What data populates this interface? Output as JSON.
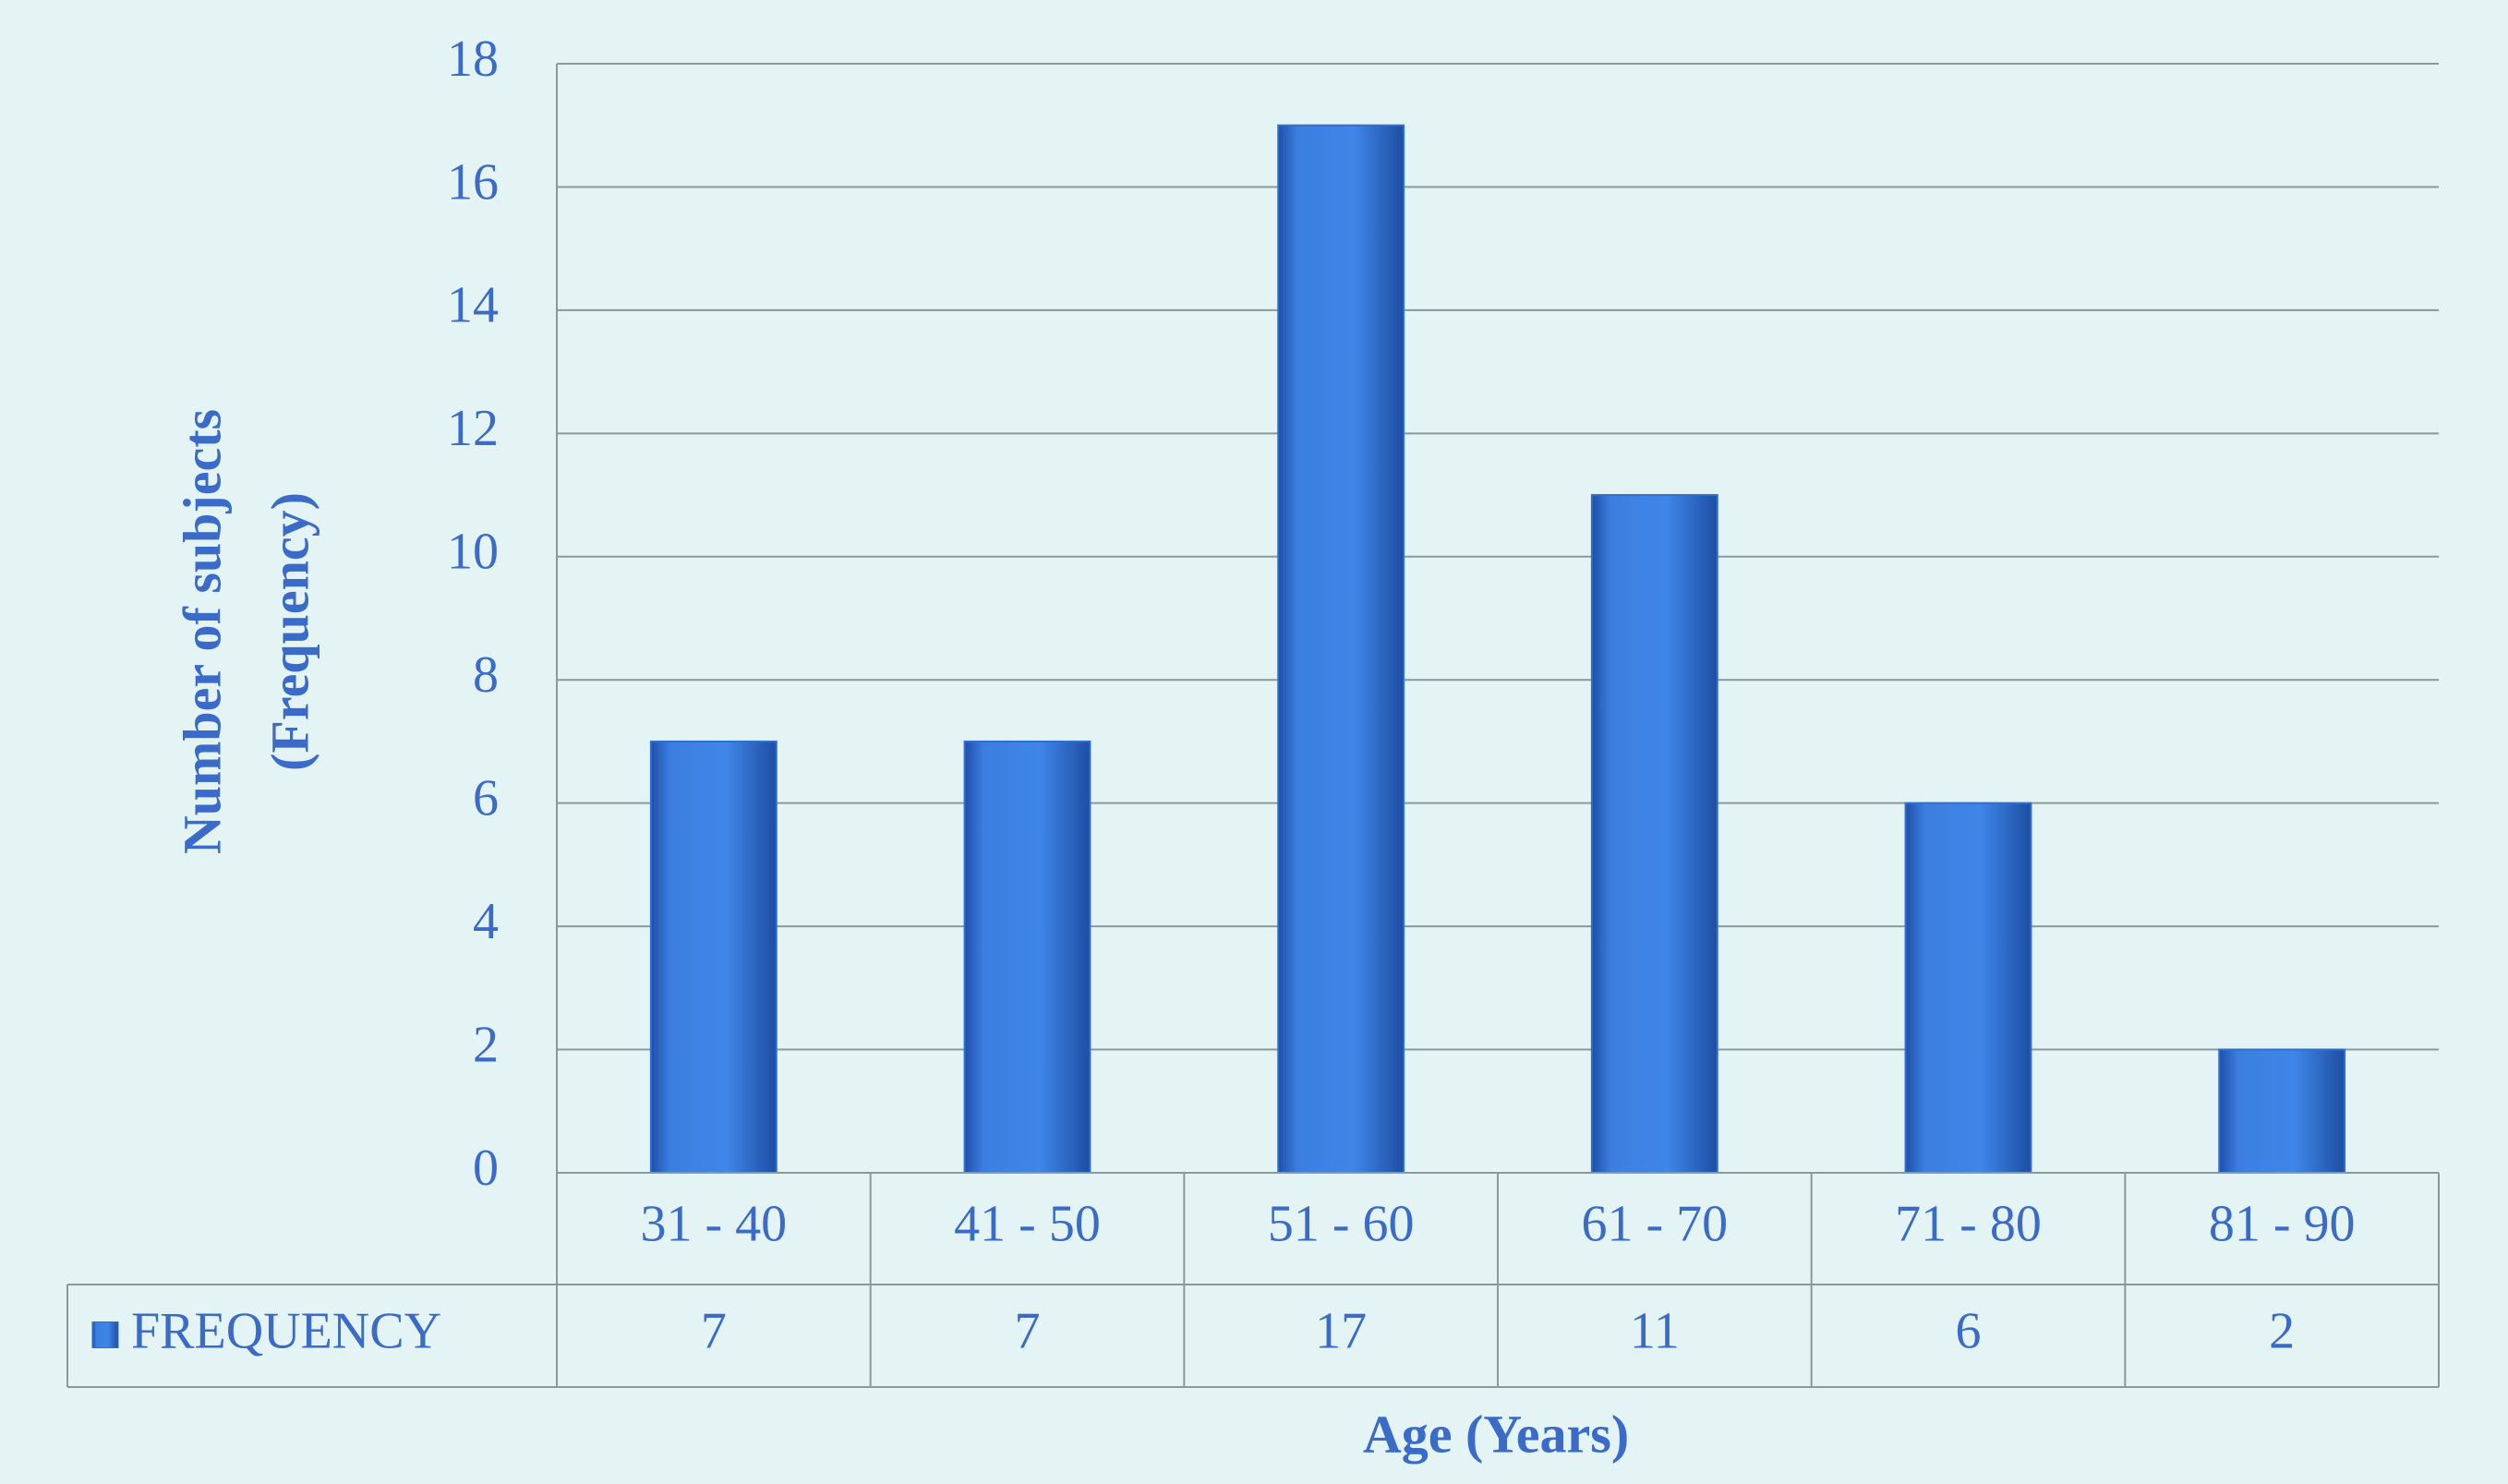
{
  "chart_data": {
    "type": "bar",
    "y_label": [
      "Number of subjects",
      "(Frequency)"
    ],
    "x_label": "Age (Years)",
    "categories": [
      "31 - 40",
      "41 - 50",
      "51 - 60",
      "61 - 70",
      "71 - 80",
      "81 - 90"
    ],
    "series": [
      {
        "name": "FREQUENCY",
        "color": "#2f6fd4",
        "values": [
          7,
          7,
          17,
          11,
          6,
          2
        ]
      }
    ],
    "ylim": [
      0,
      18
    ],
    "yticks": [
      0,
      2,
      4,
      6,
      8,
      10,
      12,
      14,
      16,
      18
    ],
    "grid": true,
    "data_table": true
  }
}
